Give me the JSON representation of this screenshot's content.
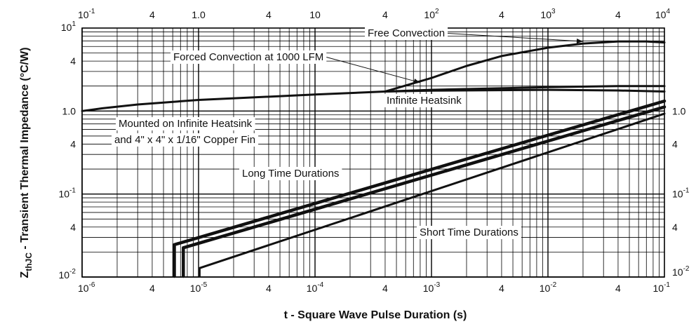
{
  "chart_data": {
    "type": "line",
    "ylabel": "Z_thJC - Transient Thermal Impedance (°C/W)",
    "ylabel_main": "Z",
    "ylabel_sub": "thJC",
    "ylabel_rest": " - Transient Thermal Impedance (°C/W)",
    "xlabel": "t - Square Wave Pulse Duration (s)",
    "x_scale": "log",
    "y_scale": "log",
    "grid": true,
    "bottom_axis": {
      "range": [
        1e-06,
        0.1
      ],
      "ticks": [
        {
          "value": 1e-06,
          "base": "10",
          "exp": "-6"
        },
        {
          "value": 4e-06,
          "base": "4",
          "exp": ""
        },
        {
          "value": 1e-05,
          "base": "10",
          "exp": "-5"
        },
        {
          "value": 4e-05,
          "base": "4",
          "exp": ""
        },
        {
          "value": 0.0001,
          "base": "10",
          "exp": "-4"
        },
        {
          "value": 0.0004,
          "base": "4",
          "exp": ""
        },
        {
          "value": 0.001,
          "base": "10",
          "exp": "-3"
        },
        {
          "value": 0.004,
          "base": "4",
          "exp": ""
        },
        {
          "value": 0.01,
          "base": "10",
          "exp": "-2"
        },
        {
          "value": 0.04,
          "base": "4",
          "exp": ""
        },
        {
          "value": 0.1,
          "base": "10",
          "exp": "-1"
        }
      ]
    },
    "top_axis": {
      "range": [
        0.1,
        10000
      ],
      "ticks": [
        {
          "value": 0.1,
          "base": "10",
          "exp": "-1"
        },
        {
          "value": 0.4,
          "base": "4",
          "exp": ""
        },
        {
          "value": 1,
          "base": "1.0",
          "exp": ""
        },
        {
          "value": 4,
          "base": "4",
          "exp": ""
        },
        {
          "value": 10,
          "base": "10",
          "exp": ""
        },
        {
          "value": 40,
          "base": "4",
          "exp": ""
        },
        {
          "value": 100,
          "base": "10",
          "exp": "2"
        },
        {
          "value": 400,
          "base": "4",
          "exp": ""
        },
        {
          "value": 1000,
          "base": "10",
          "exp": "3"
        },
        {
          "value": 4000,
          "base": "4",
          "exp": ""
        },
        {
          "value": 10000,
          "base": "10",
          "exp": "4"
        }
      ]
    },
    "left_axis": {
      "range": [
        0.01,
        10
      ],
      "ticks": [
        {
          "value": 10,
          "base": "10",
          "exp": "1"
        },
        {
          "value": 4,
          "base": "4",
          "exp": ""
        },
        {
          "value": 1,
          "base": "1.0",
          "exp": ""
        },
        {
          "value": 0.4,
          "base": "4",
          "exp": ""
        },
        {
          "value": 0.1,
          "base": "10",
          "exp": "-1"
        },
        {
          "value": 0.04,
          "base": "4",
          "exp": ""
        },
        {
          "value": 0.01,
          "base": "10",
          "exp": "-2"
        }
      ]
    },
    "right_axis": {
      "range": [
        0.01,
        10
      ],
      "ticks": [
        {
          "value": 1,
          "base": "1.0",
          "exp": ""
        },
        {
          "value": 0.4,
          "base": "4",
          "exp": ""
        },
        {
          "value": 0.1,
          "base": "10",
          "exp": "-1"
        },
        {
          "value": 0.04,
          "base": "4",
          "exp": ""
        },
        {
          "value": 0.01,
          "base": "10",
          "exp": "-2"
        }
      ]
    },
    "series": [
      {
        "name": "Free Convection",
        "axes": "top-left",
        "width": 3,
        "points": [
          [
            40,
            1.72
          ],
          [
            100,
            2.5
          ],
          [
            200,
            3.5
          ],
          [
            400,
            4.6
          ],
          [
            1000,
            5.8
          ],
          [
            2000,
            6.5
          ],
          [
            4000,
            6.9
          ],
          [
            7000,
            6.9
          ],
          [
            10000,
            6.7
          ]
        ]
      },
      {
        "name": "Forced Convection at 1000 LFM",
        "axes": "top-left",
        "width": 3,
        "points": [
          [
            0.1,
            1.0
          ],
          [
            0.15,
            1.08
          ],
          [
            0.3,
            1.2
          ],
          [
            1,
            1.36
          ],
          [
            10,
            1.58
          ],
          [
            40,
            1.72
          ],
          [
            100,
            1.8
          ],
          [
            1000,
            1.94
          ],
          [
            4000,
            2.0
          ],
          [
            10000,
            2.0
          ]
        ]
      },
      {
        "name": "Infinite Heatsink",
        "axes": "top-left",
        "width": 3,
        "points": [
          [
            40,
            1.72
          ],
          [
            100,
            1.76
          ],
          [
            1000,
            1.8
          ],
          [
            4000,
            1.77
          ],
          [
            10000,
            1.72
          ]
        ]
      },
      {
        "name": "Long Time Durations",
        "axes": "bottom-left",
        "width": 1.5,
        "double": true,
        "points": [
          [
            6.2e-06,
            0.0102
          ],
          [
            6.2e-06,
            0.0245
          ],
          [
            0.1,
            1.32
          ]
        ]
      },
      {
        "name": "Long Time Durations",
        "axes": "bottom-left",
        "width": 1.5,
        "double": true,
        "points": [
          [
            7.4e-06,
            0.0102
          ],
          [
            7.4e-06,
            0.0225
          ],
          [
            0.1,
            1.12
          ]
        ]
      },
      {
        "name": "Short Time Durations",
        "axes": "bottom-left",
        "width": 3,
        "points": [
          [
            1.02e-05,
            0.0102
          ],
          [
            1.02e-05,
            0.0128
          ],
          [
            0.1,
            0.93
          ]
        ]
      }
    ],
    "annotations": [
      {
        "text": "Free Convection",
        "anchor_x": 2000,
        "anchor_y": 6.9,
        "axes": "top-left",
        "label_pos": [
          524,
          52
        ]
      },
      {
        "text": "Forced Convection at 1000 LFM",
        "anchor_x": 80,
        "anchor_y": 2.2,
        "axes": "top-left",
        "label_pos": [
          247,
          86
        ]
      },
      {
        "text": "Infinite Heatsink",
        "anchor_x": null,
        "axes": "top-left",
        "label_pos": [
          551,
          148
        ]
      },
      {
        "text": "Mounted on Infinite Heatsink",
        "anchor_x": null,
        "axes": "top-left",
        "label_pos": [
          169,
          181
        ]
      },
      {
        "text": "and 4\" x 4\" x 1/16\" Copper Fin",
        "anchor_x": null,
        "axes": "top-left",
        "label_pos": [
          163,
          204
        ]
      },
      {
        "text": "Long Time Durations",
        "anchor_x": null,
        "axes": "top-left",
        "label_pos": [
          345,
          252
        ]
      },
      {
        "text": "Short Time Durations",
        "anchor_x": null,
        "axes": "top-left",
        "label_pos": [
          598,
          336
        ]
      }
    ]
  }
}
